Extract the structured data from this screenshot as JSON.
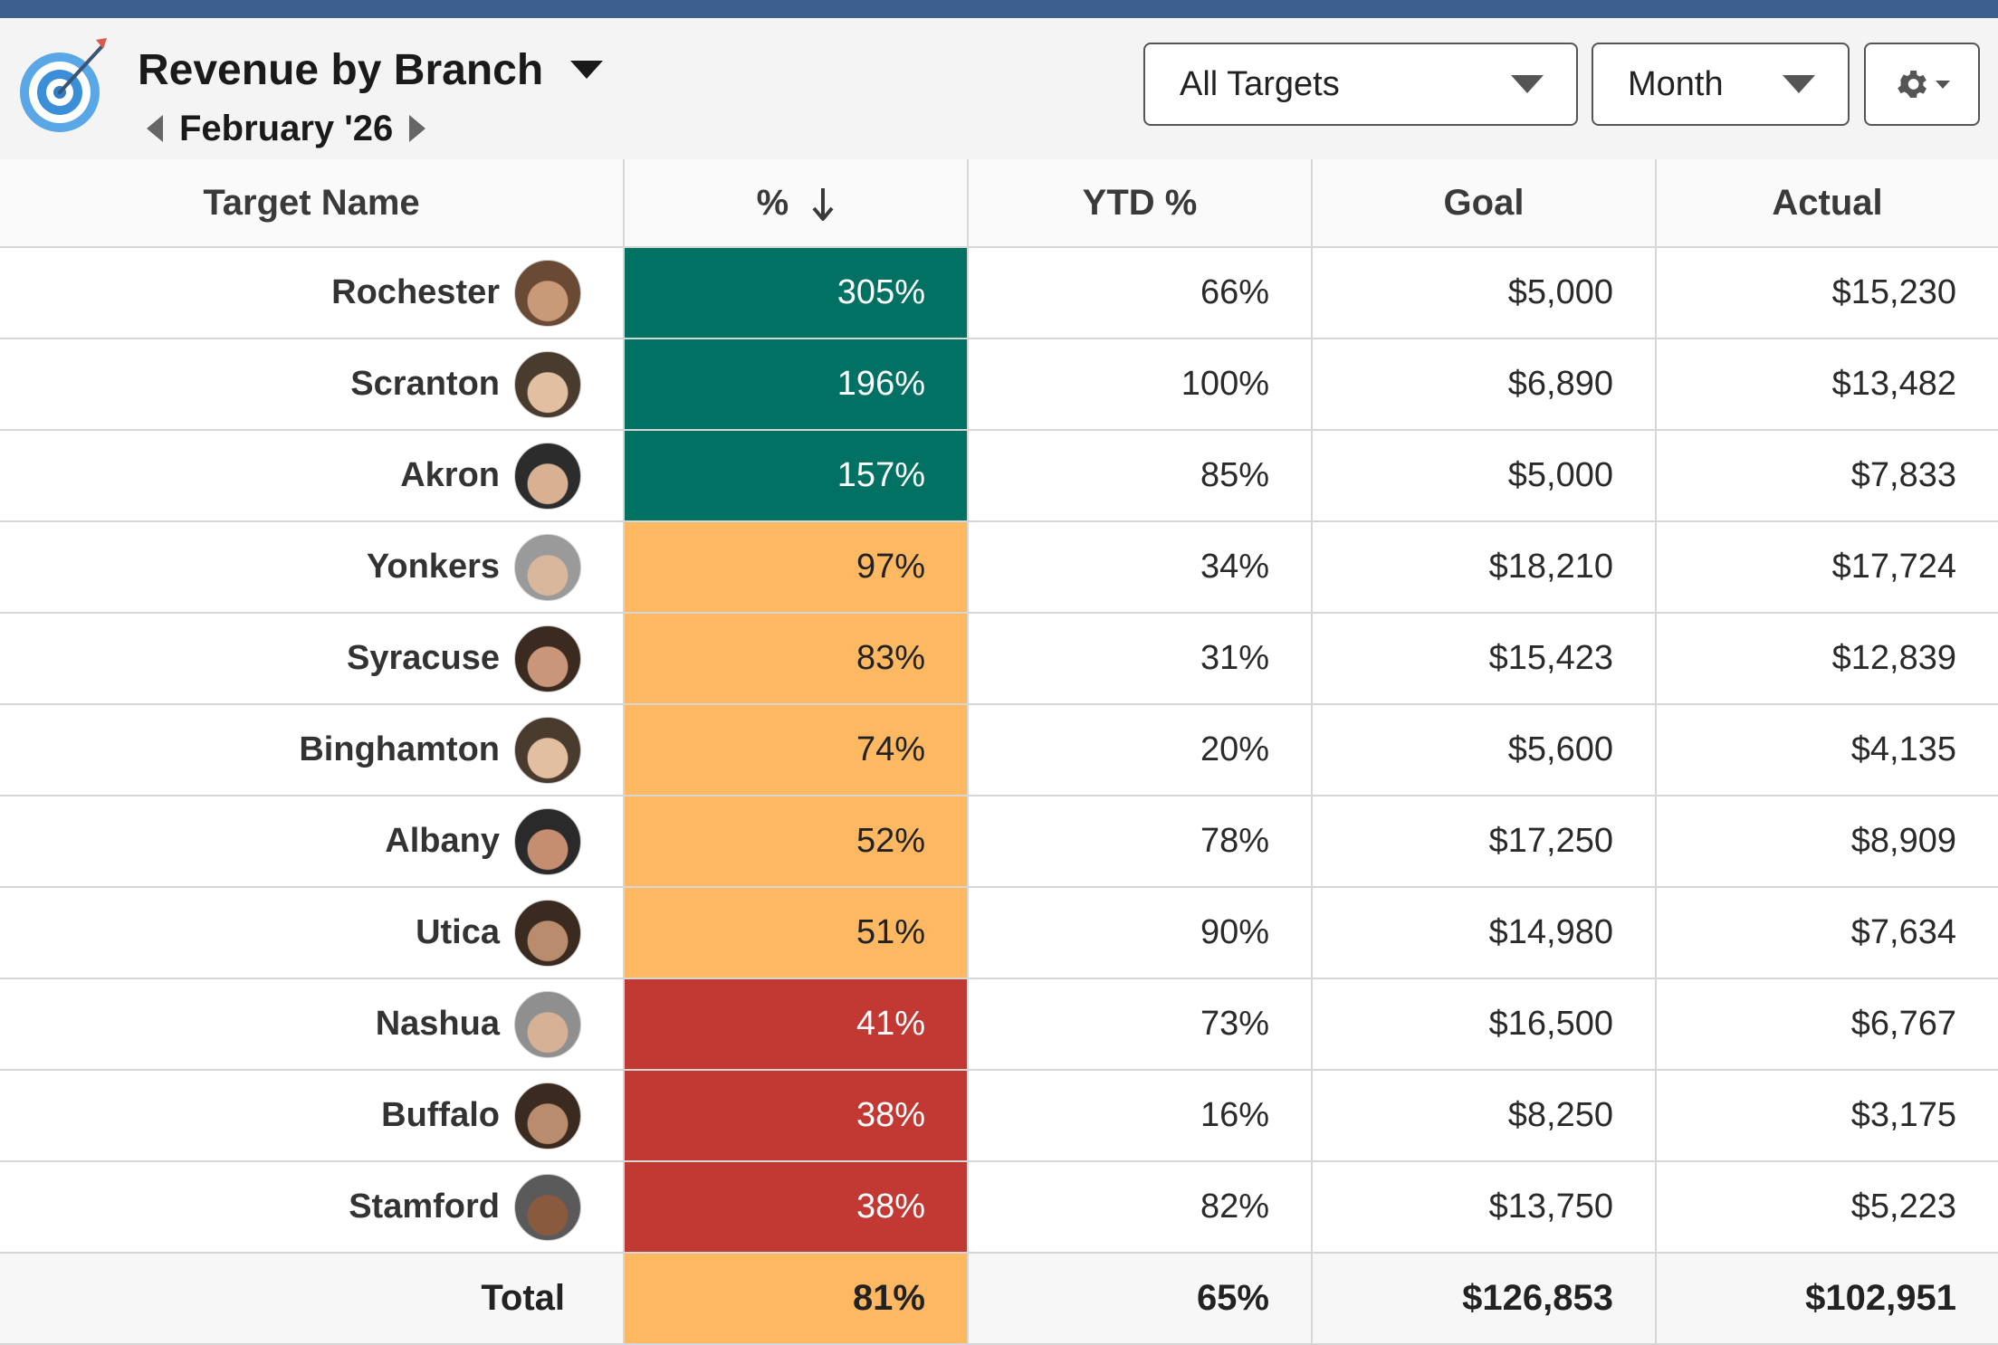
{
  "header": {
    "title": "Revenue by Branch",
    "period": "February '26"
  },
  "filters": {
    "targets_label": "All Targets",
    "period_label": "Month"
  },
  "columns": {
    "name": "Target Name",
    "pct": "%",
    "ytd": "YTD %",
    "goal": "Goal",
    "actual": "Actual"
  },
  "colors": {
    "good": "#017164",
    "warn": "#ffb862",
    "bad": "#c23934",
    "top_stripe": "#3d5f8f"
  },
  "rows": [
    {
      "name": "Rochester",
      "pct": "305%",
      "ytd": "66%",
      "goal": "$5,000",
      "actual": "$15,230",
      "status": "good"
    },
    {
      "name": "Scranton",
      "pct": "196%",
      "ytd": "100%",
      "goal": "$6,890",
      "actual": "$13,482",
      "status": "good"
    },
    {
      "name": "Akron",
      "pct": "157%",
      "ytd": "85%",
      "goal": "$5,000",
      "actual": "$7,833",
      "status": "good"
    },
    {
      "name": "Yonkers",
      "pct": "97%",
      "ytd": "34%",
      "goal": "$18,210",
      "actual": "$17,724",
      "status": "warn"
    },
    {
      "name": "Syracuse",
      "pct": "83%",
      "ytd": "31%",
      "goal": "$15,423",
      "actual": "$12,839",
      "status": "warn"
    },
    {
      "name": "Binghamton",
      "pct": "74%",
      "ytd": "20%",
      "goal": "$5,600",
      "actual": "$4,135",
      "status": "warn"
    },
    {
      "name": "Albany",
      "pct": "52%",
      "ytd": "78%",
      "goal": "$17,250",
      "actual": "$8,909",
      "status": "warn"
    },
    {
      "name": "Utica",
      "pct": "51%",
      "ytd": "90%",
      "goal": "$14,980",
      "actual": "$7,634",
      "status": "warn"
    },
    {
      "name": "Nashua",
      "pct": "41%",
      "ytd": "73%",
      "goal": "$16,500",
      "actual": "$6,767",
      "status": "bad"
    },
    {
      "name": "Buffalo",
      "pct": "38%",
      "ytd": "16%",
      "goal": "$8,250",
      "actual": "$3,175",
      "status": "bad"
    },
    {
      "name": "Stamford",
      "pct": "38%",
      "ytd": "82%",
      "goal": "$13,750",
      "actual": "$5,223",
      "status": "bad"
    }
  ],
  "total": {
    "name": "Total",
    "pct": "81%",
    "ytd": "65%",
    "goal": "$126,853",
    "actual": "$102,951",
    "status": "warn"
  }
}
